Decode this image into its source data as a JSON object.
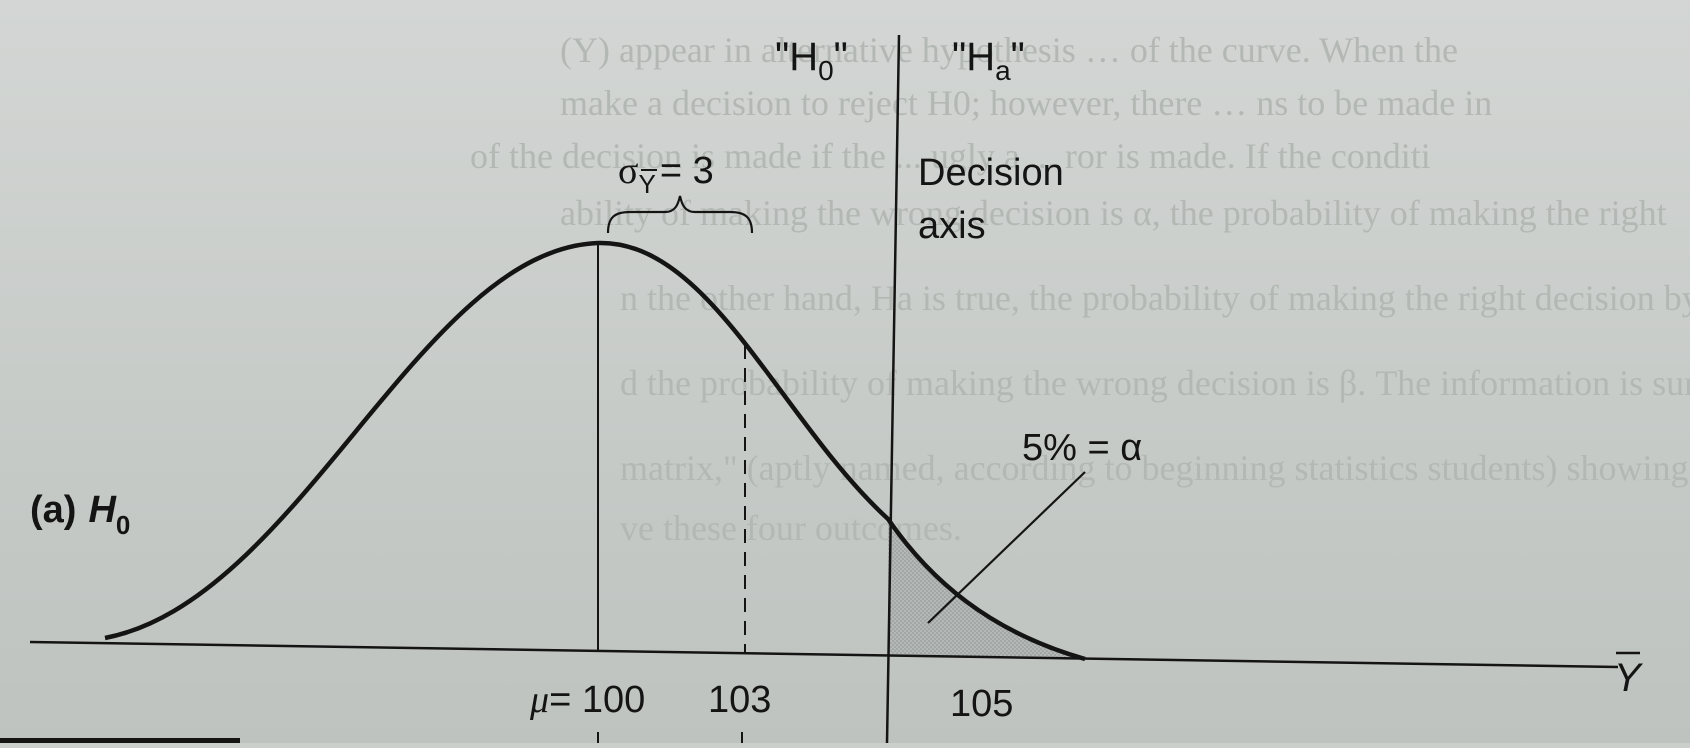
{
  "figure": {
    "panel_label": "(a)",
    "panel_hypothesis": "H",
    "panel_hypothesis_sub": "0",
    "h0_label": "\"H",
    "h0_label_sub": "0",
    "h0_label_close": "\"",
    "ha_label": "\"H",
    "ha_label_sub": "a",
    "ha_label_close": "\"",
    "sigma_symbol": "σ",
    "sigma_sub": "Y",
    "sigma_value": "= 3",
    "decision_label_line1": "Decision",
    "decision_label_line2": "axis",
    "alpha_label": "5% = α",
    "x_axis_label": "Y",
    "ticks": {
      "mu_symbol": "μ",
      "mu_value": "= 100",
      "t103": "103",
      "t105": "105"
    }
  },
  "bleed_through_text": [
    "(Y) appear in alternative hypothesis … of the curve. When the",
    "make a decision to reject H0; however, there … ns to be made in",
    "of the decision is made if the ... ugly a ... ror is made. If the conditi",
    "ability of making the wrong decision is α, the probability of making the right",
    "n the other hand, Ha is true, the probability of making the right decision by",
    "d the probability of making the wrong decision is β. The information is sum",
    "matrix,\" (aptly named, according to beginning statistics students) showing th",
    "ve these four outcomes."
  ],
  "colors": {
    "ink": "#141414",
    "shade": "#a9adab",
    "ghost_text": "#b3b8b5"
  }
}
